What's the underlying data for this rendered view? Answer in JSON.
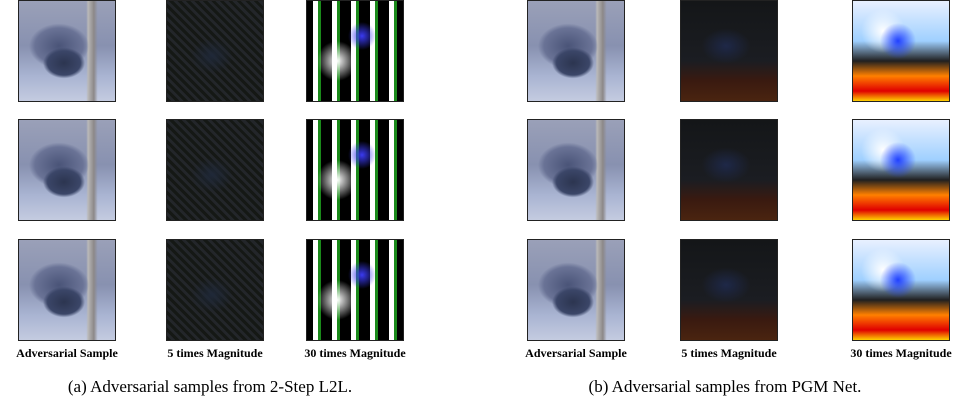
{
  "panels": [
    {
      "columns": [
        "Adversarial Sample",
        "5 times Magnitude",
        "30 times Magnitude"
      ],
      "caption": "(a)  Adversarial samples from 2-Step L2L."
    },
    {
      "columns": [
        "Adversarial Sample",
        "5 times Magnitude",
        "30 times Magnitude"
      ],
      "caption": "(b)  Adversarial samples from PGM Net."
    }
  ]
}
